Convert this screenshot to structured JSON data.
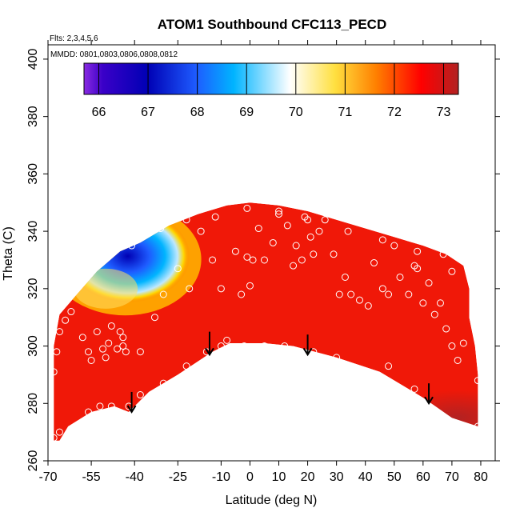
{
  "chart_data": {
    "type": "heatmap",
    "title": "ATOM1 Southbound CFC113_PECD",
    "subtitle_flights": "Flts: 2,3,4,5,6",
    "subtitle_dates": "MMDD: 0801,0803,0806,0808,0812",
    "xlabel": "Latitude (deg N)",
    "ylabel": "Theta (C)",
    "xlim": [
      -70,
      85
    ],
    "ylim": [
      260,
      405
    ],
    "x_ticks": [
      -70,
      -55,
      -40,
      -25,
      -10,
      0,
      10,
      20,
      30,
      40,
      50,
      60,
      70,
      80
    ],
    "x_tick_labels": [
      "-70",
      "-55",
      "-40",
      "-25",
      "-10",
      "0",
      "10",
      "20",
      "30",
      "40",
      "50",
      "60",
      "70",
      "80"
    ],
    "y_ticks": [
      260,
      280,
      300,
      320,
      340,
      360,
      380,
      400
    ],
    "y_tick_labels": [
      "260",
      "280",
      "300",
      "320",
      "340",
      "360",
      "380",
      "400"
    ],
    "colorbar": {
      "range": [
        65.7,
        73.3
      ],
      "ticks": [
        66,
        67,
        68,
        69,
        70,
        71,
        72,
        73
      ],
      "tick_labels": [
        "66",
        "67",
        "68",
        "69",
        "70",
        "71",
        "72",
        "73"
      ],
      "colors": [
        "#8a2be2",
        "#0000b4",
        "#1e6cff",
        "#00bfff",
        "#ffffff",
        "#ffd700",
        "#ff7f00",
        "#ff0000",
        "#b22222"
      ]
    },
    "background_value": 72,
    "features": [
      {
        "name": "low-minimum",
        "lat": -41,
        "theta": 333,
        "value": 66.3
      },
      {
        "name": "low-lobe",
        "lat": -50,
        "theta": 320,
        "value": 69.0
      },
      {
        "name": "high-tail",
        "lat": 72,
        "theta": 275,
        "value": 73.2
      }
    ],
    "domain_boundary": [
      [
        -68,
        267
      ],
      [
        -68,
        300
      ],
      [
        -66,
        311
      ],
      [
        -60,
        318
      ],
      [
        -53,
        326
      ],
      [
        -45,
        333
      ],
      [
        -38,
        336
      ],
      [
        -28,
        342
      ],
      [
        -18,
        346
      ],
      [
        -8,
        349
      ],
      [
        0,
        350
      ],
      [
        10,
        349
      ],
      [
        20,
        347
      ],
      [
        30,
        344
      ],
      [
        40,
        341
      ],
      [
        50,
        338
      ],
      [
        60,
        335
      ],
      [
        68,
        332
      ],
      [
        74,
        328
      ],
      [
        76,
        320
      ],
      [
        76,
        310
      ],
      [
        78,
        300
      ],
      [
        79,
        290
      ],
      [
        79,
        272
      ],
      [
        70,
        275
      ],
      [
        60,
        282
      ],
      [
        45,
        291
      ],
      [
        30,
        296
      ],
      [
        15,
        300
      ],
      [
        5,
        301
      ],
      [
        -7,
        301
      ],
      [
        -13,
        298
      ],
      [
        -25,
        290
      ],
      [
        -35,
        284
      ],
      [
        -42,
        277
      ],
      [
        -47,
        279
      ],
      [
        -55,
        277
      ],
      [
        -63,
        272
      ],
      [
        -66,
        267
      ]
    ],
    "observations": [
      [
        -68,
        291
      ],
      [
        -67,
        298
      ],
      [
        -66,
        305
      ],
      [
        -64,
        309
      ],
      [
        -62,
        312
      ],
      [
        -58,
        303
      ],
      [
        -56,
        298
      ],
      [
        -55,
        295
      ],
      [
        -53,
        305
      ],
      [
        -51,
        299
      ],
      [
        -50,
        296
      ],
      [
        -49,
        301
      ],
      [
        -48,
        307
      ],
      [
        -46,
        299
      ],
      [
        -45,
        305
      ],
      [
        -44,
        300
      ],
      [
        -43,
        298
      ],
      [
        -44,
        303
      ],
      [
        -38,
        298
      ],
      [
        -33,
        310
      ],
      [
        -30,
        318
      ],
      [
        -25,
        327
      ],
      [
        -21,
        320
      ],
      [
        -17,
        340
      ],
      [
        -13,
        330
      ],
      [
        -10,
        320
      ],
      [
        -8,
        302
      ],
      [
        -5,
        333
      ],
      [
        -3,
        318
      ],
      [
        -1,
        331
      ],
      [
        0,
        321
      ],
      [
        1,
        330
      ],
      [
        3,
        341
      ],
      [
        5,
        330
      ],
      [
        8,
        336
      ],
      [
        10,
        346
      ],
      [
        13,
        342
      ],
      [
        15,
        328
      ],
      [
        16,
        335
      ],
      [
        18,
        330
      ],
      [
        19,
        345
      ],
      [
        21,
        338
      ],
      [
        22,
        332
      ],
      [
        24,
        340
      ],
      [
        26,
        344
      ],
      [
        29,
        332
      ],
      [
        31,
        318
      ],
      [
        33,
        324
      ],
      [
        35,
        318
      ],
      [
        38,
        316
      ],
      [
        41,
        314
      ],
      [
        43,
        329
      ],
      [
        46,
        320
      ],
      [
        48,
        318
      ],
      [
        50,
        335
      ],
      [
        52,
        324
      ],
      [
        55,
        318
      ],
      [
        57,
        328
      ],
      [
        58,
        327
      ],
      [
        60,
        315
      ],
      [
        62,
        322
      ],
      [
        64,
        311
      ],
      [
        66,
        315
      ],
      [
        68,
        306
      ],
      [
        70,
        300
      ],
      [
        72,
        295
      ],
      [
        74,
        301
      ],
      [
        -56,
        277
      ],
      [
        -52,
        279
      ],
      [
        -48,
        279
      ],
      [
        -42,
        279
      ],
      [
        -38,
        283
      ],
      [
        -30,
        287
      ],
      [
        -22,
        293
      ],
      [
        -15,
        298
      ],
      [
        -10,
        300
      ],
      [
        -2,
        300
      ],
      [
        5,
        300
      ],
      [
        12,
        300
      ],
      [
        22,
        298
      ],
      [
        30,
        296
      ],
      [
        40,
        291
      ],
      [
        48,
        293
      ],
      [
        57,
        285
      ],
      [
        79,
        288
      ],
      [
        79,
        272
      ],
      [
        -68,
        268
      ],
      [
        -66,
        270
      ],
      [
        -41,
        335
      ],
      [
        -31,
        341
      ],
      [
        -22,
        344
      ],
      [
        -12,
        345
      ],
      [
        -1,
        348
      ],
      [
        10,
        347
      ],
      [
        20,
        344
      ],
      [
        34,
        340
      ],
      [
        46,
        337
      ],
      [
        58,
        333
      ],
      [
        67,
        332
      ],
      [
        70,
        326
      ],
      [
        76,
        326
      ]
    ],
    "arrows": [
      {
        "lat": -41,
        "theta_from": 284,
        "theta_to": 277
      },
      {
        "lat": -14,
        "theta_from": 305,
        "theta_to": 297
      },
      {
        "lat": 20,
        "theta_from": 304,
        "theta_to": 297
      },
      {
        "lat": 62,
        "theta_from": 287,
        "theta_to": 280
      }
    ]
  }
}
